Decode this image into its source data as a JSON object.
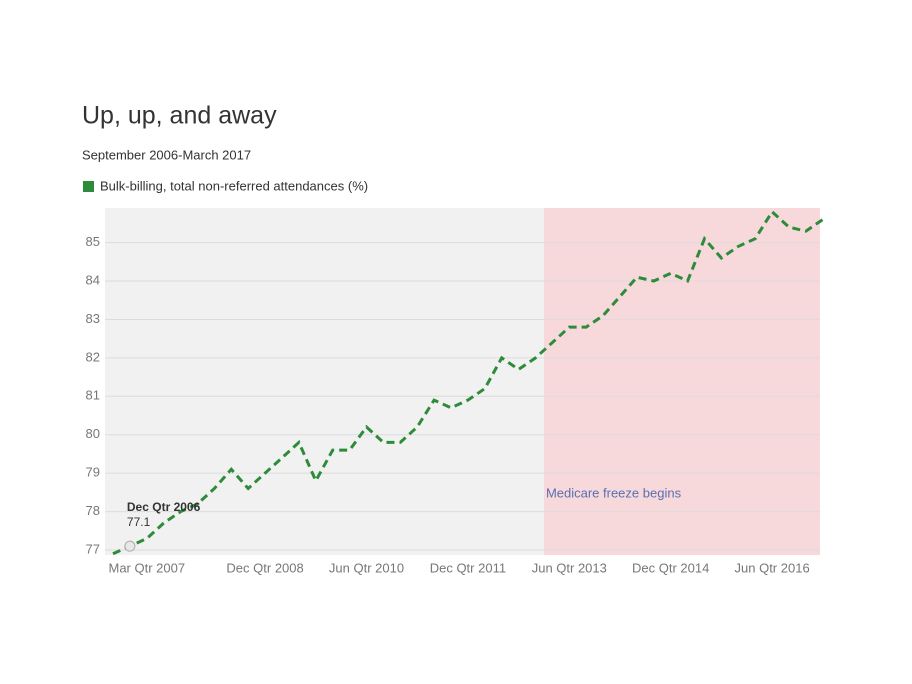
{
  "chart_data": {
    "type": "line",
    "title": "Up, up, and away",
    "subtitle": "September 2006-March 2017",
    "categories": [
      null,
      null,
      "Mar Qtr 2007",
      null,
      null,
      null,
      null,
      null,
      null,
      "Dec Qtr 2008",
      null,
      null,
      null,
      null,
      null,
      "Jun Qtr 2010",
      null,
      null,
      null,
      null,
      null,
      "Dec Qtr 2011",
      null,
      null,
      null,
      null,
      null,
      "Jun Qtr 2013",
      null,
      null,
      null,
      null,
      null,
      "Dec Qtr 2014",
      null,
      null,
      null,
      null,
      null,
      "Jun Qtr 2016",
      null,
      null,
      null
    ],
    "series": [
      {
        "name": "Bulk-billing, total non-referred attendances (%)",
        "color": "#2e8b3a",
        "values": [
          76.9,
          77.1,
          77.3,
          77.7,
          78.0,
          78.2,
          78.6,
          79.1,
          78.6,
          79.0,
          79.4,
          79.8,
          78.8,
          79.6,
          79.6,
          80.2,
          79.8,
          79.8,
          80.2,
          80.9,
          80.7,
          80.9,
          81.2,
          82.0,
          81.7,
          82.0,
          82.4,
          82.8,
          82.8,
          83.1,
          83.6,
          84.1,
          84.0,
          84.2,
          84.0,
          85.1,
          84.6,
          84.9,
          85.1,
          85.8,
          85.4,
          85.3,
          85.6
        ]
      }
    ],
    "ylim": [
      76.87,
      85.9
    ],
    "yticks": [
      77,
      78,
      79,
      80,
      81,
      82,
      83,
      84,
      85
    ],
    "grid": true,
    "region": {
      "label": "Medicare freeze begins",
      "start_index": 26,
      "color": "#f7d9dc"
    },
    "tooltip": {
      "category": "Dec Qtr 2006",
      "value": 77.1
    }
  }
}
